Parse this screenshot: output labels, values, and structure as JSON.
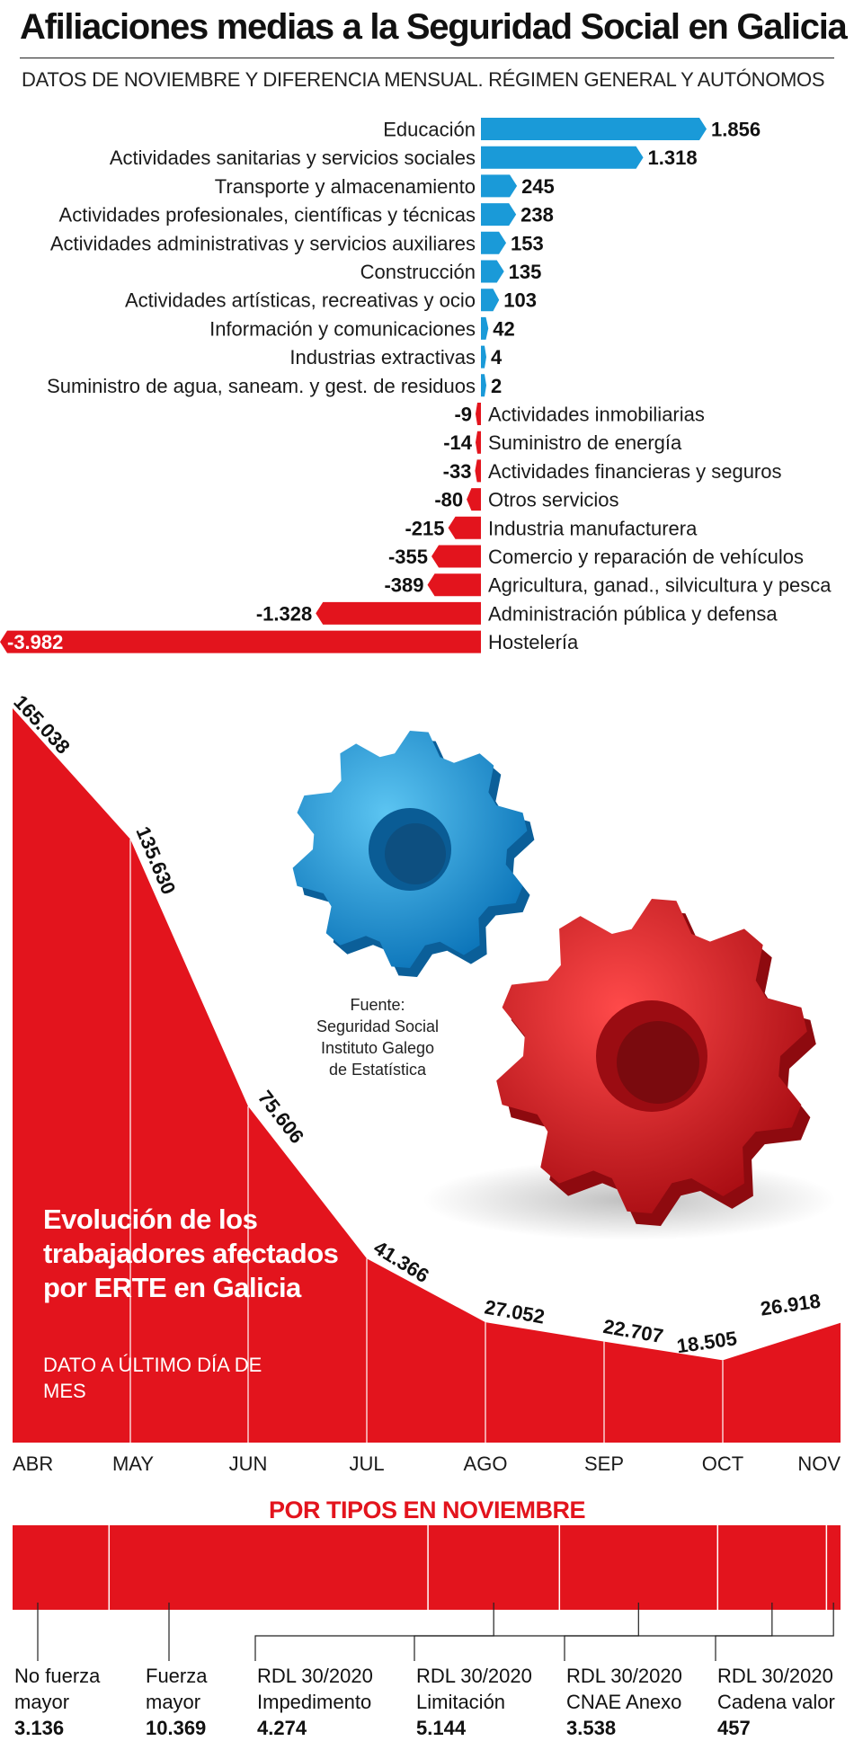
{
  "header": {
    "title": "Afiliaciones medias a la Seguridad Social en Galicia",
    "subtitle": "DATOS DE NOVIEMBRE Y DIFERENCIA MENSUAL. RÉGIMEN GENERAL Y AUTÓNOMOS"
  },
  "colors": {
    "positive": "#1a9ad8",
    "negative": "#e3141d",
    "text": "#1a1a1a"
  },
  "chart_data": [
    {
      "type": "bar",
      "orientation": "horizontal",
      "title": "",
      "categories": [
        "Educación",
        "Actividades sanitarias y servicios sociales",
        "Transporte y almacenamiento",
        "Actividades profesionales, científicas y técnicas",
        "Actividades administrativas y servicios auxiliares",
        "Construcción",
        "Actividades artísticas, recreativas y ocio",
        "Información y comunicaciones",
        "Industrias extractivas",
        "Suministro de agua, saneam. y gest. de residuos",
        "Actividades inmobiliarias",
        "Suministro de energía",
        "Actividades financieras y seguros",
        "Otros servicios",
        "Industria manufacturera",
        "Comercio y reparación de vehículos",
        "Agricultura, ganad., silvicultura y pesca",
        "Administración pública y defensa",
        "Hostelería"
      ],
      "values": [
        1856,
        1318,
        245,
        238,
        153,
        135,
        103,
        42,
        4,
        2,
        -9,
        -14,
        -33,
        -80,
        -215,
        -355,
        -389,
        -1328,
        -3982
      ],
      "value_labels": [
        "1.856",
        "1.318",
        "245",
        "238",
        "153",
        "135",
        "103",
        "42",
        "4",
        "2",
        "-9",
        "-14",
        "-33",
        "-80",
        "-215",
        "-355",
        "-389",
        "-1.328",
        "-3.982"
      ],
      "grid": false
    },
    {
      "type": "area",
      "title": "Evolución de los trabajadores afectados por ERTE en Galicia",
      "subtitle": "DATO A ÚLTIMO DÍA DE MES",
      "categories": [
        "ABR",
        "MAY",
        "JUN",
        "JUL",
        "AGO",
        "SEP",
        "OCT",
        "NOV"
      ],
      "values": [
        165038,
        135630,
        75606,
        41366,
        27052,
        22707,
        18505,
        26918
      ],
      "value_labels": [
        "165.038",
        "135.630",
        "75.606",
        "41.366",
        "27.052",
        "22.707",
        "18.505",
        "26.918"
      ],
      "ylim": [
        0,
        165038
      ],
      "grid": false
    },
    {
      "type": "bar",
      "orientation": "stacked-horizontal",
      "title": "POR TIPOS EN NOVIEMBRE",
      "categories": [
        "No fuerza mayor",
        "Fuerza mayor",
        "RDL 30/2020 Impedimento",
        "RDL 30/2020 Limitación",
        "RDL 30/2020 CNAE Anexo",
        "RDL 30/2020 Cadena valor"
      ],
      "label_lines": [
        [
          "No fuerza",
          "mayor"
        ],
        [
          "Fuerza",
          "mayor"
        ],
        [
          "RDL 30/2020",
          "Impedimento"
        ],
        [
          "RDL 30/2020",
          "Limitación"
        ],
        [
          "RDL 30/2020",
          "CNAE Anexo"
        ],
        [
          "RDL 30/2020",
          "Cadena valor"
        ]
      ],
      "values": [
        3136,
        10369,
        4274,
        5144,
        3538,
        457
      ],
      "value_labels": [
        "3.136",
        "10.369",
        "4.274",
        "5.144",
        "3.538",
        "457"
      ]
    }
  ],
  "source": {
    "lines": [
      "Fuente:",
      "Seguridad Social",
      "Instituto Galego",
      "de Estatística"
    ]
  }
}
